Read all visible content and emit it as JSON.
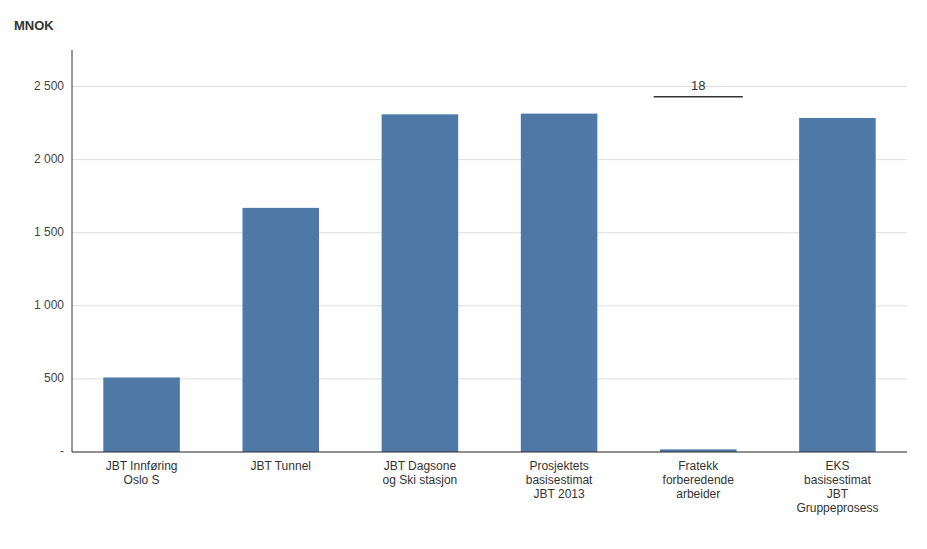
{
  "chart_data": {
    "type": "bar",
    "ylabel": "MNOK",
    "categories": [
      "JBT Innføring\nOslo S",
      "JBT Tunnel",
      "JBT Dagsone\nog Ski stasjon",
      "Prosjektets\nbasisestimat\nJBT 2013",
      "Fratekk\nforberedende\narbeider",
      "EKS\nbasisestimat\nJBT\nGruppeprosess"
    ],
    "values": [
      510,
      1670,
      2310,
      2315,
      18,
      2285
    ],
    "ylim": [
      0,
      2750
    ],
    "yticks": [
      {
        "value": 0,
        "label": "-"
      },
      500,
      {
        "value": 1000,
        "label": "1 000"
      },
      {
        "value": 1500,
        "label": "1 500"
      },
      {
        "value": 2000,
        "label": "2 000"
      },
      {
        "value": 2500,
        "label": "2 500"
      }
    ],
    "grid": true,
    "annotations": [
      {
        "text": "18",
        "category": "Fratekk\nforberedende\narbeider",
        "y": 2430
      }
    ]
  }
}
